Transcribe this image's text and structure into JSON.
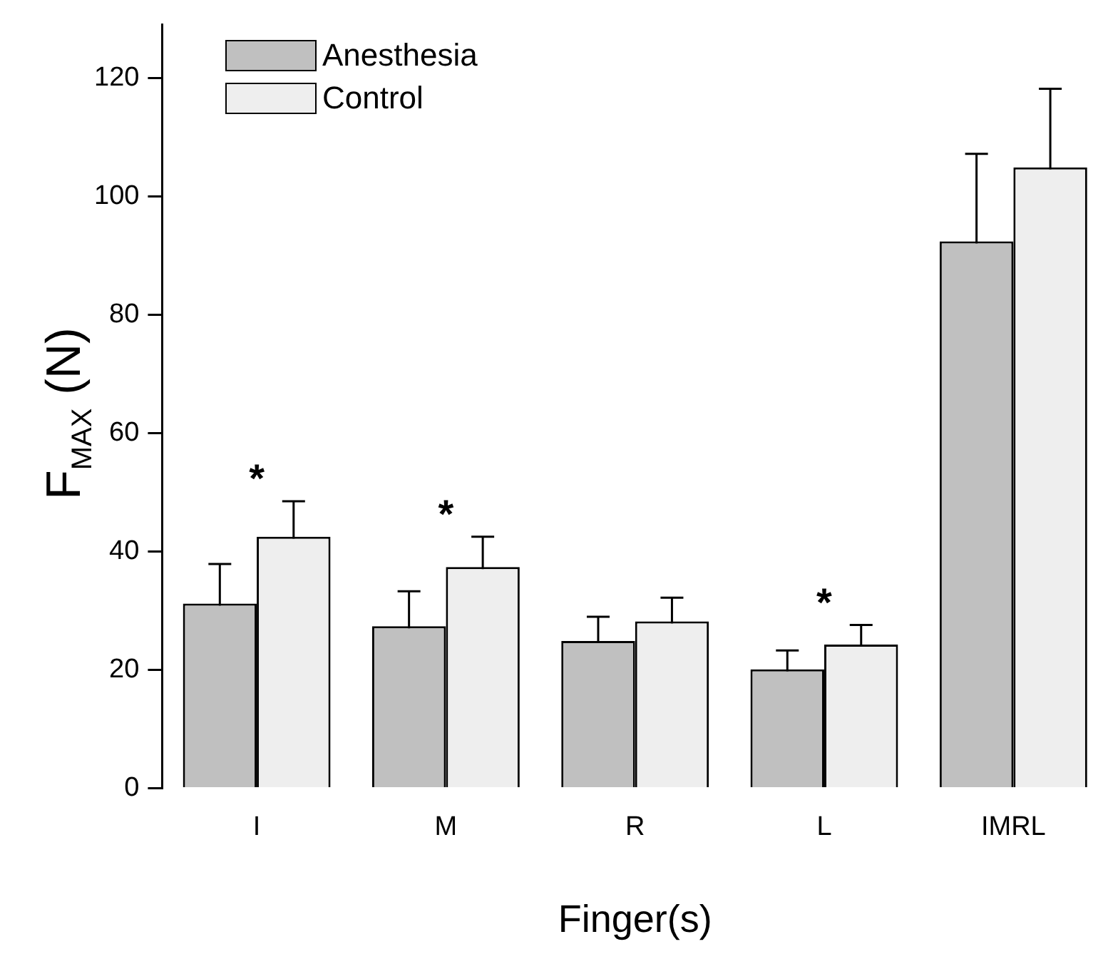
{
  "chart_data": {
    "type": "bar",
    "ylabel": "F$_{MAX}$ (N)",
    "xlabel": "Finger(s)",
    "categories": [
      "I",
      "M",
      "R",
      "L",
      "IMRL"
    ],
    "series": [
      {
        "name": "Anesthesia",
        "color": "#c0c0c0",
        "values": [
          31.2,
          27.4,
          24.9,
          20.1,
          92.4
        ],
        "errors": [
          6.7,
          5.9,
          4.1,
          3.2,
          14.8
        ]
      },
      {
        "name": "Control",
        "color": "#eeeeee",
        "values": [
          42.5,
          37.4,
          28.2,
          24.3,
          104.9
        ],
        "errors": [
          6.0,
          5.1,
          4.0,
          3.3,
          13.3
        ]
      }
    ],
    "ylim": [
      0,
      129
    ],
    "yticks": [
      0,
      20,
      40,
      60,
      80,
      100,
      120
    ],
    "grid": false,
    "legend": "top left",
    "annotations": [
      {
        "text": "*",
        "x": "I",
        "y": 42.5
      },
      {
        "text": "*",
        "x": "M",
        "y": 37.4
      },
      {
        "text": "*",
        "x": "L",
        "y": 24.3
      }
    ]
  }
}
